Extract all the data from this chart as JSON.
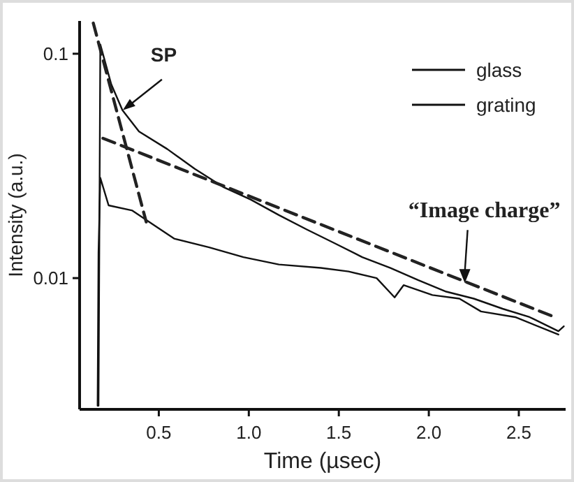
{
  "chart_data": {
    "type": "line",
    "xlabel": "Time (µsec)",
    "ylabel": "Intensity (a.u.)",
    "log": "y",
    "legend": "top right",
    "grid": false,
    "marker": "none",
    "xlim": [
      0.06,
      2.76
    ],
    "ylim": [
      0.0026,
      0.14
    ],
    "xticks": [
      0.5,
      {
        "value": 1,
        "label": "1.0"
      },
      1.5,
      {
        "value": 2,
        "label": "2.0"
      },
      2.5
    ],
    "yticks": [
      0.01,
      0.1
    ],
    "series": [
      {
        "name": "glass",
        "color": "#111111",
        "line_style": "solid",
        "x": [
          0.165,
          0.175,
          0.236,
          0.298,
          0.39,
          0.547,
          0.7,
          0.857,
          1.01,
          1.167,
          1.32,
          1.477,
          1.63,
          1.787,
          1.94,
          2.097,
          2.25,
          2.41,
          2.56,
          2.72,
          2.75
        ],
        "values": [
          0.0027,
          0.11,
          0.073,
          0.056,
          0.045,
          0.0376,
          0.0307,
          0.0255,
          0.0224,
          0.0191,
          0.0165,
          0.0143,
          0.0124,
          0.0111,
          0.0098,
          0.0087,
          0.0081,
          0.0073,
          0.0067,
          0.0058,
          0.0061
        ]
      },
      {
        "name": "grating",
        "color": "#111111",
        "line_style": "solid",
        "x": [
          0.16,
          0.165,
          0.175,
          0.221,
          0.353,
          0.47,
          0.585,
          0.78,
          0.97,
          1.167,
          1.4,
          1.554,
          1.71,
          1.81,
          1.86,
          2.02,
          2.17,
          2.29,
          2.48,
          2.72
        ],
        "values": [
          0.0027,
          0.013,
          0.028,
          0.0211,
          0.02,
          0.0173,
          0.015,
          0.0137,
          0.0124,
          0.0115,
          0.0111,
          0.0107,
          0.01,
          0.0082,
          0.0093,
          0.0084,
          0.0081,
          0.0071,
          0.0067,
          0.0056
        ]
      },
      {
        "type": "line",
        "color": "#222222",
        "line_style": "dashed",
        "x": [
          0.136,
          0.43
        ],
        "values": [
          0.137,
          0.0178
        ]
      },
      {
        "type": "line",
        "color": "#222222",
        "line_style": "dashed",
        "x": [
          0.19,
          2.7
        ],
        "values": [
          0.042,
          0.0067
        ]
      }
    ],
    "annotations": [
      {
        "text": "SP",
        "x": 0.3,
        "y": 0.056
      },
      {
        "text": "“Image charge”",
        "x": 2.2,
        "y": 0.0095
      }
    ]
  }
}
